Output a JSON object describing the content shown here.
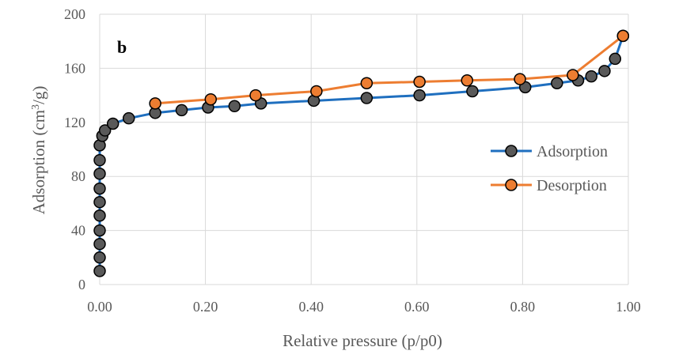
{
  "chart_data": {
    "type": "line",
    "title": "",
    "panel_label": "b",
    "xlabel": "Relative pressure (p/p0)",
    "ylabel_main": "Adsorption (cm",
    "ylabel_sup": "3",
    "ylabel_tail": "/g)",
    "xlim": [
      0,
      1
    ],
    "ylim": [
      0,
      200
    ],
    "xticks": [
      0,
      0.2,
      0.4,
      0.6,
      0.8,
      1.0
    ],
    "xtick_labels": [
      "0.00",
      "0.20",
      "0.40",
      "0.60",
      "0.80",
      "1.00"
    ],
    "yticks": [
      0,
      40,
      80,
      120,
      160,
      200
    ],
    "ytick_labels": [
      "0",
      "40",
      "80",
      "120",
      "160",
      "200"
    ],
    "grid": true,
    "legend_position": "right",
    "series": [
      {
        "name": "Adsorption",
        "color": "#1f6fbf",
        "marker_color": "#595959",
        "x": [
          0.0,
          0.0,
          0.0,
          0.0,
          0.0,
          0.0,
          0.0,
          0.0,
          0.0,
          0.0,
          0.005,
          0.01,
          0.025,
          0.055,
          0.105,
          0.155,
          0.205,
          0.255,
          0.305,
          0.405,
          0.505,
          0.605,
          0.705,
          0.805,
          0.865,
          0.905,
          0.93,
          0.955,
          0.975,
          0.99
        ],
        "y": [
          10,
          20,
          30,
          40,
          51,
          61,
          71,
          82,
          92,
          103,
          110,
          114,
          119,
          123,
          127,
          129,
          131,
          132,
          134,
          136,
          138,
          140,
          143,
          146,
          149,
          151,
          154,
          158,
          167,
          184
        ]
      },
      {
        "name": "Desorption",
        "color": "#ed7d31",
        "marker_color": "#ed7d31",
        "x": [
          0.99,
          0.895,
          0.795,
          0.695,
          0.605,
          0.505,
          0.41,
          0.295,
          0.21,
          0.105
        ],
        "y": [
          184,
          155,
          152,
          151,
          150,
          149,
          143,
          140,
          137,
          134
        ]
      }
    ]
  }
}
